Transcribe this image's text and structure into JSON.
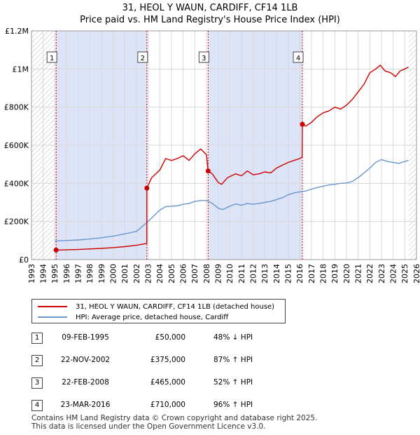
{
  "title_line1": "31, HEOL Y WAUN, CARDIFF, CF14 1LB",
  "title_line2": "Price paid vs. HM Land Registry's House Price Index (HPI)",
  "colors": {
    "property": "#cc0000",
    "hpi": "#6a96cc",
    "shade": "#dde4f7",
    "grid": "#d8d8d8",
    "marker_line": "#cc0000"
  },
  "legend": [
    {
      "label": "31, HEOL Y WAUN, CARDIFF, CF14 1LB (detached house)"
    },
    {
      "label": "HPI: Average price, detached house, Cardiff"
    }
  ],
  "sales": [
    {
      "num": "1",
      "date": "09-FEB-1995",
      "price": "£50,000",
      "hpi": "48% ↓ HPI"
    },
    {
      "num": "2",
      "date": "22-NOV-2002",
      "price": "£375,000",
      "hpi": "87% ↑ HPI"
    },
    {
      "num": "3",
      "date": "22-FEB-2008",
      "price": "£465,000",
      "hpi": "52% ↑ HPI"
    },
    {
      "num": "4",
      "date": "23-MAR-2016",
      "price": "£710,000",
      "hpi": "96% ↑ HPI"
    }
  ],
  "footer_line1": "Contains HM Land Registry data © Crown copyright and database right 2025.",
  "footer_line2": "This data is licensed under the Open Government Licence v3.0.",
  "chart_data": {
    "type": "line",
    "title": "31, HEOL Y WAUN, CARDIFF, CF14 1LB",
    "subtitle": "Price paid vs. HM Land Registry's House Price Index (HPI)",
    "xlabel": "",
    "ylabel": "",
    "xlim": [
      1993,
      2026
    ],
    "ylim": [
      0,
      1200000
    ],
    "grid": true,
    "legend_position": "below",
    "x_ticks": [
      1993,
      1994,
      1995,
      1996,
      1997,
      1998,
      1999,
      2000,
      2001,
      2002,
      2003,
      2004,
      2005,
      2006,
      2007,
      2008,
      2009,
      2010,
      2011,
      2012,
      2013,
      2014,
      2015,
      2016,
      2017,
      2018,
      2019,
      2020,
      2021,
      2022,
      2023,
      2024,
      2025,
      2026
    ],
    "y_ticks": [
      {
        "value": 0,
        "label": "£0"
      },
      {
        "value": 200000,
        "label": "£200K"
      },
      {
        "value": 400000,
        "label": "£400K"
      },
      {
        "value": 600000,
        "label": "£600K"
      },
      {
        "value": 800000,
        "label": "£800K"
      },
      {
        "value": 1000000,
        "label": "£1M"
      },
      {
        "value": 1200000,
        "label": "£1.2M"
      }
    ],
    "hatched_regions": [
      [
        1993,
        1995.1
      ],
      [
        2025.3,
        2026
      ]
    ],
    "shaded_regions": [
      [
        1995.1,
        2002.9
      ],
      [
        2008.15,
        2016.23
      ]
    ],
    "sale_markers": [
      {
        "label": "1",
        "x": 1995.11,
        "y": 50000
      },
      {
        "label": "2",
        "x": 2002.89,
        "y": 375000
      },
      {
        "label": "3",
        "x": 2008.14,
        "y": 465000
      },
      {
        "label": "4",
        "x": 2016.22,
        "y": 710000
      }
    ],
    "series": [
      {
        "name": "31, HEOL Y WAUN, CARDIFF, CF14 1LB (detached house)",
        "color": "#cc0000",
        "x": [
          1995.11,
          1996,
          1997,
          1998,
          1999,
          2000,
          2001,
          2002,
          2002.88,
          2002.89,
          2003.3,
          2004,
          2004.5,
          2005,
          2005.5,
          2006,
          2006.5,
          2007,
          2007.5,
          2008.0,
          2008.14,
          2008.5,
          2009.0,
          2009.3,
          2009.8,
          2010.5,
          2011,
          2011.5,
          2012,
          2012.5,
          2013,
          2013.5,
          2014,
          2014.5,
          2015,
          2015.5,
          2016.0,
          2016.2,
          2016.22,
          2016.5,
          2017,
          2017.5,
          2018,
          2018.5,
          2019,
          2019.5,
          2020,
          2020.5,
          2021,
          2021.5,
          2022,
          2022.5,
          2022.9,
          2023.3,
          2023.8,
          2024.2,
          2024.6,
          2025.0,
          2025.3
        ],
        "y": [
          50000,
          51000,
          53000,
          56000,
          59000,
          63000,
          68000,
          75000,
          85000,
          375000,
          430000,
          470000,
          530000,
          520000,
          530000,
          545000,
          520000,
          555000,
          580000,
          550000,
          465000,
          450000,
          405000,
          395000,
          430000,
          450000,
          440000,
          465000,
          445000,
          450000,
          460000,
          455000,
          480000,
          495000,
          510000,
          520000,
          530000,
          540000,
          710000,
          700000,
          720000,
          750000,
          770000,
          780000,
          800000,
          790000,
          810000,
          840000,
          880000,
          920000,
          980000,
          1000000,
          1020000,
          990000,
          980000,
          960000,
          990000,
          1000000,
          1010000
        ]
      },
      {
        "name": "HPI: Average price, detached house, Cardiff",
        "color": "#6a96cc",
        "x": [
          1995.0,
          1996,
          1997,
          1998,
          1999,
          2000,
          2001,
          2002,
          2002.9,
          2003.5,
          2004,
          2004.5,
          2005,
          2005.5,
          2006,
          2006.5,
          2007,
          2007.5,
          2008,
          2008.5,
          2009.0,
          2009.4,
          2010,
          2010.5,
          2011,
          2011.5,
          2012,
          2012.5,
          2013,
          2013.5,
          2014,
          2014.5,
          2015,
          2015.5,
          2016,
          2016.5,
          2017,
          2017.5,
          2018,
          2018.5,
          2019,
          2019.5,
          2020,
          2020.5,
          2021,
          2021.5,
          2022,
          2022.5,
          2023,
          2023.5,
          2024,
          2024.5,
          2025,
          2025.3
        ],
        "y": [
          98000,
          100000,
          103000,
          108000,
          115000,
          123000,
          135000,
          148000,
          195000,
          230000,
          260000,
          278000,
          280000,
          282000,
          290000,
          295000,
          305000,
          310000,
          310000,
          295000,
          270000,
          262000,
          280000,
          292000,
          285000,
          295000,
          290000,
          295000,
          300000,
          305000,
          315000,
          325000,
          340000,
          350000,
          355000,
          360000,
          370000,
          378000,
          385000,
          392000,
          395000,
          400000,
          402000,
          410000,
          430000,
          455000,
          480000,
          510000,
          525000,
          515000,
          510000,
          505000,
          515000,
          520000
        ]
      }
    ]
  }
}
